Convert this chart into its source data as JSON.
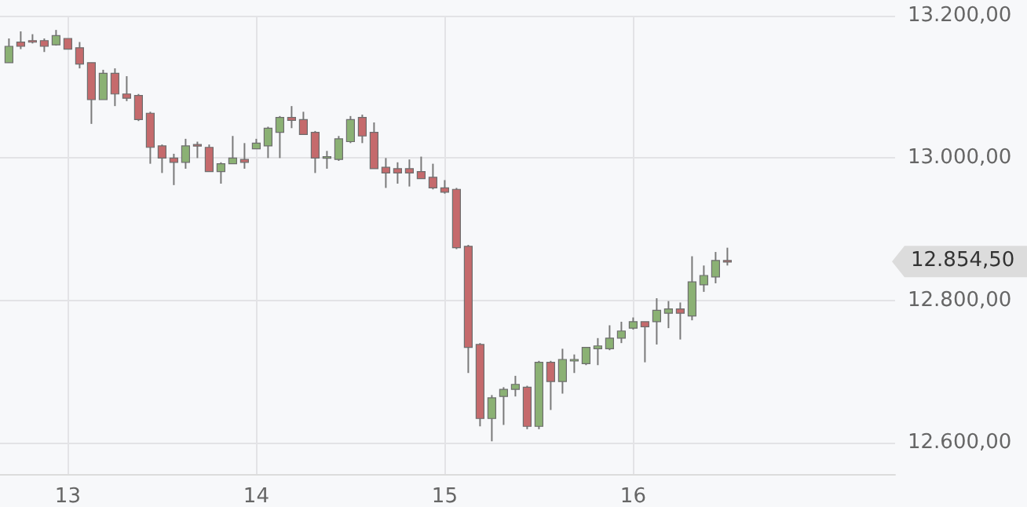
{
  "chart_data": {
    "type": "candlestick",
    "x": [
      12.6875,
      12.75,
      12.8125,
      12.875,
      12.9375,
      13,
      13.0625,
      13.125,
      13.1875,
      13.25,
      13.3125,
      13.375,
      13.4375,
      13.5,
      13.5625,
      13.625,
      13.6875,
      13.75,
      13.8125,
      13.875,
      13.9375,
      14,
      14.0625,
      14.125,
      14.1875,
      14.25,
      14.3125,
      14.375,
      14.4375,
      14.5,
      14.5625,
      14.625,
      14.6875,
      14.75,
      14.8125,
      14.875,
      14.9375,
      15,
      15.0625,
      15.125,
      15.1875,
      15.25,
      15.3125,
      15.375,
      15.4375,
      15.5,
      15.5625,
      15.625,
      15.6875,
      15.75,
      15.8125,
      15.875,
      15.9375,
      16,
      16.0625,
      16.125,
      16.1875,
      16.25,
      16.3125,
      16.375,
      16.4375,
      16.5
    ],
    "ohlc": [
      [
        13134,
        13168,
        13134,
        13157
      ],
      [
        13163,
        13178,
        13153,
        13157
      ],
      [
        13165,
        13174,
        13161,
        13163
      ],
      [
        13165,
        13168,
        13149,
        13157
      ],
      [
        13159,
        13180,
        13158,
        13172
      ],
      [
        13168,
        13168,
        13153,
        13153
      ],
      [
        13155,
        13163,
        13126,
        13132
      ],
      [
        13134,
        13134,
        13048,
        13082
      ],
      [
        13082,
        13124,
        13082,
        13119
      ],
      [
        13119,
        13126,
        13073,
        13090
      ],
      [
        13090,
        13115,
        13080,
        13084
      ],
      [
        13088,
        13090,
        13052,
        13054
      ],
      [
        13063,
        13065,
        12992,
        13015
      ],
      [
        13017,
        13019,
        12979,
        13000
      ],
      [
        13000,
        13006,
        12962,
        12994
      ],
      [
        12994,
        13027,
        12985,
        13017
      ],
      [
        13019,
        13023,
        13000,
        13017
      ],
      [
        13015,
        13019,
        12981,
        12981
      ],
      [
        12981,
        12994,
        12964,
        12992
      ],
      [
        12992,
        13031,
        12992,
        13000
      ],
      [
        12998,
        13021,
        12985,
        12994
      ],
      [
        13013,
        13027,
        13013,
        13021
      ],
      [
        13017,
        13044,
        13000,
        13042
      ],
      [
        13036,
        13059,
        13000,
        13057
      ],
      [
        13057,
        13073,
        13042,
        13053
      ],
      [
        13054,
        13065,
        13033,
        13033
      ],
      [
        13036,
        13038,
        12979,
        13000
      ],
      [
        13000,
        13010,
        12985,
        13002
      ],
      [
        12998,
        13031,
        12996,
        13027
      ],
      [
        13023,
        13059,
        13021,
        13054
      ],
      [
        13057,
        13061,
        13021,
        13031
      ],
      [
        13036,
        13050,
        12985,
        12985
      ],
      [
        12987,
        13000,
        12958,
        12979
      ],
      [
        12985,
        12994,
        12964,
        12979
      ],
      [
        12985,
        12998,
        12960,
        12979
      ],
      [
        12981,
        13002,
        12971,
        12971
      ],
      [
        12973,
        12992,
        12956,
        12958
      ],
      [
        12958,
        12969,
        12950,
        12952
      ],
      [
        12956,
        12958,
        12872,
        12874
      ],
      [
        12876,
        12878,
        12698,
        12734
      ],
      [
        12738,
        12740,
        12623,
        12634
      ],
      [
        12634,
        12667,
        12602,
        12663
      ],
      [
        12665,
        12678,
        12625,
        12675
      ],
      [
        12675,
        12694,
        12665,
        12682
      ],
      [
        12678,
        12680,
        12619,
        12623
      ],
      [
        12623,
        12715,
        12619,
        12713
      ],
      [
        12713,
        12715,
        12646,
        12686
      ],
      [
        12686,
        12732,
        12669,
        12717
      ],
      [
        12715,
        12724,
        12698,
        12717
      ],
      [
        12711,
        12734,
        12709,
        12734
      ],
      [
        12732,
        12747,
        12709,
        12736
      ],
      [
        12732,
        12765,
        12730,
        12747
      ],
      [
        12747,
        12770,
        12740,
        12757
      ],
      [
        12761,
        12776,
        12759,
        12770
      ],
      [
        12770,
        12770,
        12713,
        12763
      ],
      [
        12770,
        12803,
        12738,
        12786
      ],
      [
        12782,
        12799,
        12761,
        12788
      ],
      [
        12788,
        12797,
        12745,
        12782
      ],
      [
        12778,
        12862,
        12772,
        12826
      ],
      [
        12822,
        12849,
        12812,
        12835
      ],
      [
        12833,
        12868,
        12824,
        12856
      ],
      [
        12856,
        12874,
        12849,
        12854.5
      ]
    ],
    "colors": [
      "#8bb174",
      "#c56a6c",
      "#c56a6c",
      "#c56a6c",
      "#8bb174",
      "#c56a6c",
      "#c56a6c",
      "#c56a6c",
      "#8bb174",
      "#c56a6c",
      "#c56a6c",
      "#c56a6c",
      "#c56a6c",
      "#c56a6c",
      "#c56a6c",
      "#8bb174",
      "#c56a6c",
      "#c56a6c",
      "#8bb174",
      "#8bb174",
      "#c56a6c",
      "#8bb174",
      "#8bb174",
      "#8bb174",
      "#c56a6c",
      "#c56a6c",
      "#c56a6c",
      "#8bb174",
      "#8bb174",
      "#8bb174",
      "#c56a6c",
      "#c56a6c",
      "#c56a6c",
      "#c56a6c",
      "#c56a6c",
      "#c56a6c",
      "#c56a6c",
      "#c56a6c",
      "#c56a6c",
      "#c56a6c",
      "#c56a6c",
      "#8bb174",
      "#8bb174",
      "#8bb174",
      "#c56a6c",
      "#8bb174",
      "#c56a6c",
      "#8bb174",
      "#8bb174",
      "#8bb174",
      "#8bb174",
      "#8bb174",
      "#8bb174",
      "#8bb174",
      "#c56a6c",
      "#8bb174",
      "#8bb174",
      "#c56a6c",
      "#8bb174",
      "#8bb174",
      "#8bb174",
      "#c56a6c"
    ],
    "xlim": [
      12.64,
      17.39
    ],
    "xticks": [
      13,
      14,
      15,
      16
    ],
    "ylim": [
      12556,
      13200
    ],
    "yticks": [
      {
        "value": 12600,
        "label": "12.600,00"
      },
      {
        "value": 12800,
        "label": "12.800,00"
      },
      {
        "value": 13000,
        "label": "13.000,00"
      },
      {
        "value": 13200,
        "label": "13.200,00"
      }
    ],
    "grid": true,
    "annotations": [
      "12.854,50"
    ]
  }
}
